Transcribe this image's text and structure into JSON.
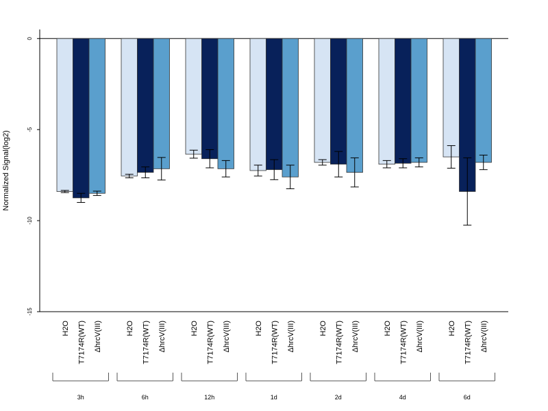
{
  "chart_data": {
    "type": "bar",
    "ylabel": "Normalized Signal(log2)",
    "ylim": [
      -15,
      0.5
    ],
    "yticks": [
      0,
      -5,
      -10,
      -15
    ],
    "groups": [
      "3h",
      "6h",
      "12h",
      "1d",
      "2d",
      "4d",
      "6d"
    ],
    "series": [
      {
        "name": "H2O",
        "color": "#d6e4f4",
        "values": [
          -8.4,
          -7.55,
          -6.35,
          -7.25,
          -6.8,
          -6.9,
          -6.5
        ],
        "errors": [
          0.06,
          0.1,
          0.22,
          0.3,
          0.15,
          0.2,
          0.62
        ]
      },
      {
        "name": "T7174R(WT)",
        "color": "#08215a",
        "values": [
          -8.75,
          -7.35,
          -6.6,
          -7.2,
          -6.9,
          -6.85,
          -8.4
        ],
        "errors": [
          0.25,
          0.3,
          0.5,
          0.55,
          0.7,
          0.25,
          1.85
        ]
      },
      {
        "name": "ΔhrcV(III)",
        "color": "#5a9fcd",
        "values": [
          -8.5,
          -7.15,
          -7.15,
          -7.6,
          -7.35,
          -6.8,
          -6.8
        ],
        "errors": [
          0.12,
          0.62,
          0.45,
          0.65,
          0.8,
          0.25,
          0.4
        ]
      }
    ],
    "grid": false,
    "legend": "none"
  }
}
